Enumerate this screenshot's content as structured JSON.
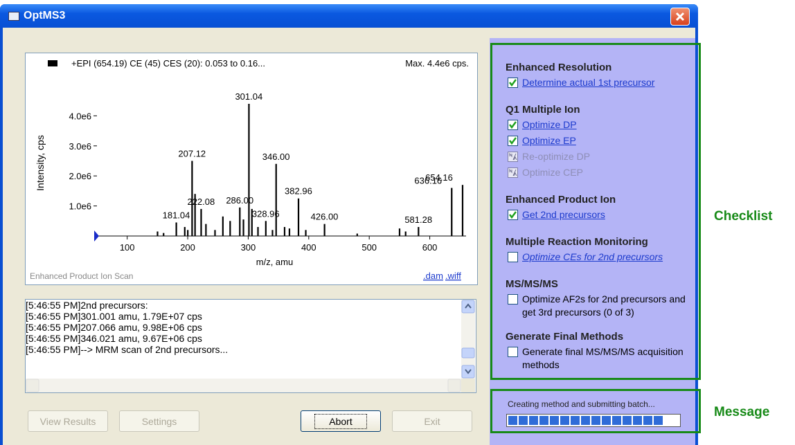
{
  "window": {
    "title": "OptMS3"
  },
  "chart_data": {
    "type": "bar",
    "legend_text": "+EPI (654.19) CE (45) CES (20): 0.053 to 0.16...",
    "max_text": "Max. 4.4e6 cps.",
    "ylabel": "Intensity, cps",
    "xlabel": "m/z, amu",
    "footer": "Enhanced Product Ion Scan",
    "links": [
      ".dam",
      ".wiff"
    ],
    "color": "#000000",
    "x": [
      150,
      160,
      181.04,
      195,
      200,
      207.12,
      212,
      222.08,
      230,
      245,
      258,
      270,
      286,
      292,
      301.04,
      306,
      316,
      328.96,
      340,
      346,
      360,
      368,
      382.96,
      395,
      426,
      480,
      550,
      560,
      581.28,
      636.16,
      654.16
    ],
    "values": [
      150000,
      100000,
      450000,
      300000,
      200000,
      2500000,
      1400000,
      900000,
      400000,
      200000,
      650000,
      500000,
      950000,
      550000,
      4400000,
      900000,
      300000,
      500000,
      200000,
      2400000,
      300000,
      250000,
      1250000,
      200000,
      400000,
      80000,
      250000,
      150000,
      300000,
      1600000,
      1700000
    ],
    "labels": [
      null,
      null,
      "181.04",
      null,
      null,
      "207.12",
      null,
      "222.08",
      null,
      null,
      null,
      null,
      "286.00",
      null,
      "301.04",
      null,
      null,
      "328.96",
      null,
      "346.00",
      null,
      null,
      "382.96",
      null,
      "426.00",
      null,
      null,
      null,
      "581.28",
      "636.16",
      "654.16"
    ],
    "xlim": [
      50,
      660
    ],
    "ylim": [
      0,
      4400000
    ],
    "xticks": [
      100,
      200,
      300,
      400,
      500,
      600
    ],
    "yticks": [
      {
        "value": 1000000,
        "label": "1.0e6"
      },
      {
        "value": 2000000,
        "label": "2.0e6"
      },
      {
        "value": 3000000,
        "label": "3.0e6"
      },
      {
        "value": 4000000,
        "label": "4.0e6"
      }
    ]
  },
  "log": [
    {
      "time": "[5:46:55 PM]",
      "text": "2nd precursors:"
    },
    {
      "time": "[5:46:55 PM]",
      "text": "301.001 amu, 1.79E+07 cps"
    },
    {
      "time": "[5:46:55 PM]",
      "text": "207.066 amu, 9.98E+06 cps"
    },
    {
      "time": "[5:46:55 PM]",
      "text": "346.021 amu, 9.67E+06 cps"
    },
    {
      "time": "[5:46:55 PM]",
      "text": "--> MRM scan of 2nd precursors..."
    }
  ],
  "buttons": [
    {
      "label": "View Results",
      "enabled": false
    },
    {
      "label": "Settings",
      "enabled": false
    },
    {
      "label": "Abort",
      "enabled": true
    },
    {
      "label": "Exit",
      "enabled": false
    }
  ],
  "checklist": [
    {
      "title": "Enhanced Resolution",
      "items": [
        {
          "label": "Determine actual 1st precursor",
          "state": "checked",
          "style": "link"
        }
      ]
    },
    {
      "title": "Q1 Multiple Ion",
      "items": [
        {
          "label": "Optimize DP",
          "state": "checked",
          "style": "link"
        },
        {
          "label": "Optimize EP",
          "state": "checked",
          "style": "link"
        },
        {
          "label": "Re-optimize DP",
          "state": "na",
          "style": "disabled"
        },
        {
          "label": "Optimize CEP",
          "state": "na",
          "style": "disabled"
        }
      ]
    },
    {
      "title": "Enhanced Product Ion",
      "items": [
        {
          "label": "Get 2nd precursors",
          "state": "checked",
          "style": "link"
        }
      ]
    },
    {
      "title": "Multiple Reaction Monitoring",
      "items": [
        {
          "label": "Optimize CEs for 2nd precursors",
          "state": "unchecked",
          "style": "italic-link"
        }
      ]
    },
    {
      "title": "MS/MS/MS",
      "items": [
        {
          "label": "Optimize AF2s for 2nd precursors and get 3rd precursors (0 of 3)",
          "state": "unchecked",
          "style": "plain"
        }
      ]
    },
    {
      "title": "Generate Final Methods",
      "items": [
        {
          "label": "Generate final MS/MS/MS acquisition methods",
          "state": "unchecked",
          "style": "plain"
        }
      ]
    }
  ],
  "status": {
    "message": "Creating method and submitting batch...",
    "progress": 95
  },
  "annotations": [
    "Checklist",
    "Message"
  ]
}
